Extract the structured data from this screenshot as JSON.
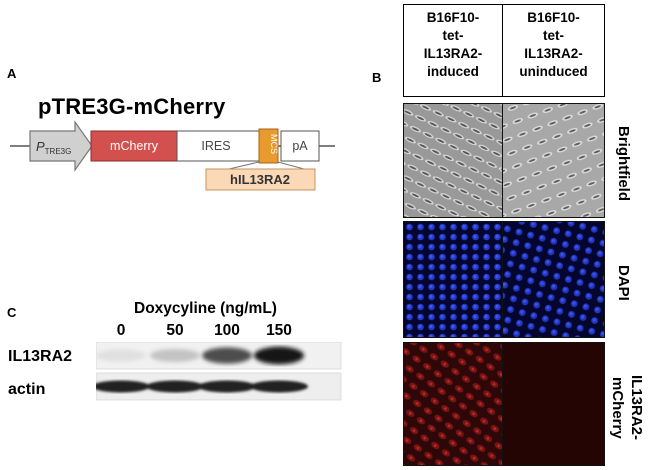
{
  "panel_a": {
    "label": "A",
    "construct_title": "pTRE3G-mCherry",
    "promoter": {
      "prefix": "P",
      "subscript": "TRE3G"
    },
    "segments": {
      "mcherry": "mCherry",
      "ires": "IRES",
      "mcs": "MCS",
      "pa": "pA"
    },
    "insert_label": "hIL13RA2",
    "colors": {
      "promoter": "#d0d0d0",
      "mcherry": "#d2504e",
      "mcs": "#e89a2e",
      "insert": "#fbd9b6"
    }
  },
  "panel_b": {
    "label": "B",
    "columns": [
      {
        "lines": [
          "B16F10-",
          "tet-",
          "IL13RA2-",
          "induced"
        ]
      },
      {
        "lines": [
          "B16F10-",
          "tet-",
          "IL13RA2-",
          "uninduced"
        ]
      }
    ],
    "rows": [
      {
        "label": "Brightfield"
      },
      {
        "label": "DAPI"
      },
      {
        "label": "IL13RA2-mCherry"
      }
    ]
  },
  "panel_c": {
    "label": "C",
    "treatment_title": "Doxycyline (ng/mL)",
    "concentrations": [
      "0",
      "50",
      "100",
      "150"
    ],
    "blots": [
      {
        "label": "IL13RA2",
        "intensity": [
          0.05,
          0.18,
          0.7,
          0.95
        ]
      },
      {
        "label": "actin",
        "intensity": [
          0.9,
          0.9,
          0.9,
          0.9
        ]
      }
    ]
  }
}
